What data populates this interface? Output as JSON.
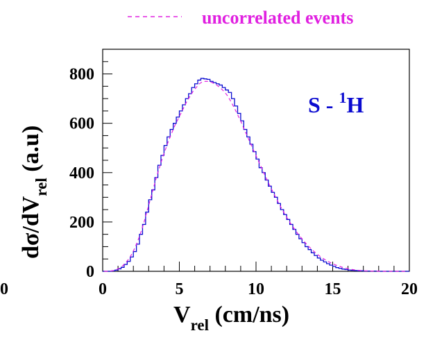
{
  "colors": {
    "primary": "#0a0ad0",
    "secondary": "#e020e0",
    "axis": "#000000"
  },
  "chart_data": {
    "type": "line",
    "xlim": [
      0,
      20
    ],
    "ylim": [
      0,
      900
    ],
    "x_ticks": [
      0,
      5,
      10,
      15,
      20
    ],
    "x_tick_labels": [
      "0",
      "5",
      "10",
      "15",
      "20"
    ],
    "outside_left_label": "0",
    "y_ticks": [
      0,
      200,
      400,
      600,
      800
    ],
    "y_tick_labels": [
      "0",
      "200",
      "400",
      "600",
      "800"
    ],
    "xlabel": {
      "main": "V",
      "sub": "rel",
      "rest": " (cm/ns)"
    },
    "ylabel": {
      "main": "dσ/dV",
      "sub": "rel",
      "rest": " (a.u)"
    },
    "annotation": {
      "main": "S - ",
      "sup": "1",
      "rest": "H"
    },
    "legend": [
      {
        "label": "uncorrelated events",
        "style": "dashed",
        "color": "#e020e0"
      }
    ],
    "series": [
      {
        "style": "histogram",
        "color": "#0a0ad0",
        "bin_width": 0.2,
        "x_start": 0.0,
        "values": [
          0,
          0,
          0,
          2,
          5,
          10,
          16,
          28,
          40,
          58,
          80,
          110,
          150,
          190,
          240,
          290,
          330,
          380,
          430,
          470,
          510,
          545,
          575,
          600,
          625,
          650,
          675,
          700,
          720,
          745,
          760,
          775,
          782,
          780,
          778,
          770,
          765,
          760,
          755,
          745,
          735,
          725,
          700,
          670,
          640,
          610,
          575,
          545,
          515,
          485,
          455,
          420,
          400,
          370,
          345,
          320,
          300,
          275,
          250,
          230,
          210,
          190,
          170,
          150,
          132,
          116,
          100,
          88,
          75,
          64,
          54,
          45,
          38,
          31,
          25,
          20,
          15,
          12,
          9,
          7,
          5,
          4,
          3,
          2,
          2,
          1,
          1,
          1,
          1,
          1,
          0,
          0,
          0,
          0,
          0,
          0,
          0,
          0,
          0,
          0
        ]
      },
      {
        "style": "dashed",
        "color": "#e020e0",
        "bin_width": 0.2,
        "x_start": 0.0,
        "values": [
          0,
          0,
          1,
          3,
          7,
          13,
          22,
          35,
          50,
          70,
          95,
          125,
          160,
          200,
          245,
          290,
          335,
          380,
          420,
          460,
          495,
          530,
          560,
          590,
          615,
          640,
          665,
          690,
          710,
          730,
          745,
          760,
          768,
          770,
          770,
          766,
          760,
          752,
          742,
          730,
          715,
          695,
          672,
          648,
          622,
          595,
          566,
          538,
          510,
          482,
          455,
          428,
          400,
          373,
          347,
          322,
          298,
          274,
          251,
          230,
          209,
          190,
          172,
          155,
          139,
          124,
          110,
          97,
          85,
          74,
          64,
          55,
          47,
          40,
          34,
          28,
          23,
          19,
          15,
          12,
          9,
          7,
          5,
          4,
          3,
          2,
          2,
          1,
          1,
          1,
          0,
          0,
          0,
          0,
          0,
          0,
          0,
          0,
          0,
          0
        ]
      }
    ]
  }
}
